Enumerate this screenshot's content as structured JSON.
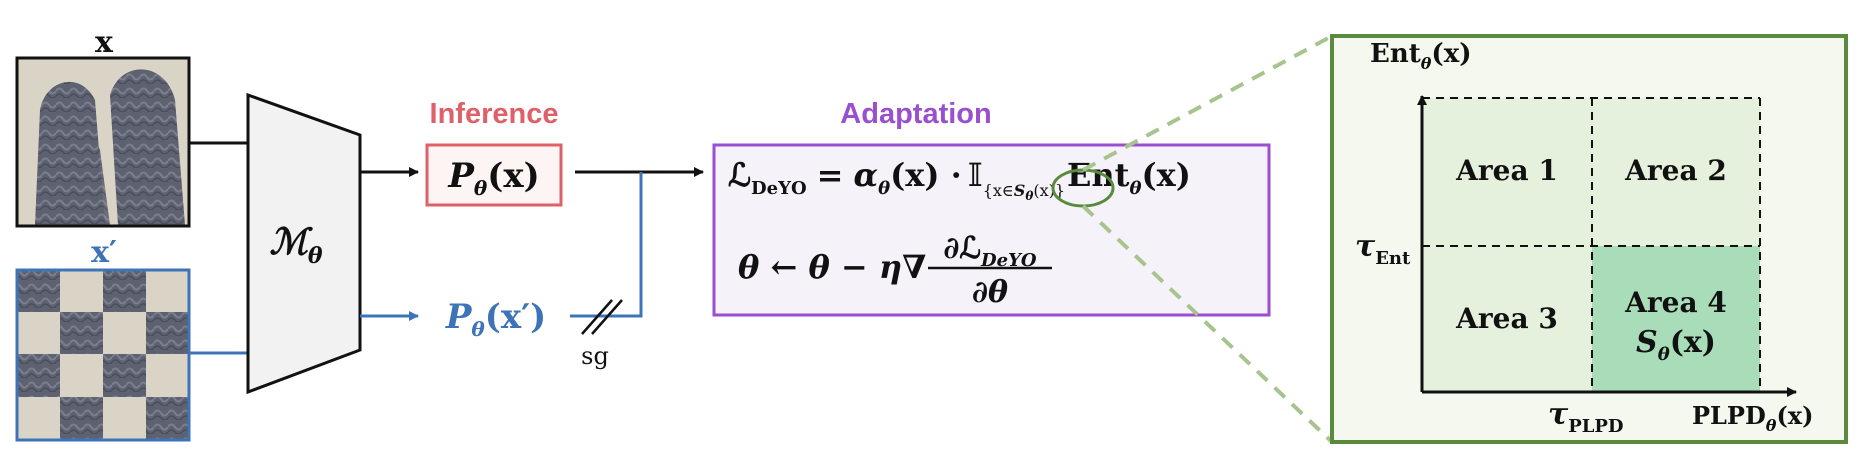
{
  "colors": {
    "black": "#111111",
    "blue": "#3d74b8",
    "inference_red": "#e0606a",
    "adaptation_purple": "#9a4fd0",
    "green_border": "#5a8a3e",
    "area_light": "#e5f1dc",
    "area_dark": "#a9dcb8",
    "panel_bg": "#f4f8ef",
    "box_bg_purple": "#f6f2fa",
    "box_bg_red": "#fdf4f4"
  },
  "input": {
    "x_label": "x",
    "x_prime_label": "x′"
  },
  "model": {
    "label_main": "ℳ",
    "label_sub": "θ"
  },
  "inference": {
    "title": "Inference",
    "output_main": "P",
    "output_sub": "θ",
    "output_arg": "(x)"
  },
  "augmented_output": {
    "main": "P",
    "sub": "θ",
    "arg": "(x′)"
  },
  "stop_gradient": "sg",
  "adaptation": {
    "title": "Adaptation",
    "loss_symbol": "ℒ",
    "loss_sub": "DeYO",
    "eq1_equals": "=",
    "alpha": "α",
    "alpha_sub": "θ",
    "alpha_arg": "(x) ·",
    "indicator": "𝕀",
    "indicator_sub_pre": "{x∈",
    "indicator_sub_s": "S",
    "indicator_sub_theta": "θ",
    "indicator_sub_post": "(x)}",
    "ent": "Ent",
    "ent_sub": "θ",
    "ent_arg": "(x)",
    "eq2_lhs": "θ ← θ − η∇",
    "eq2_num": "∂ℒ",
    "eq2_num_sub": "DeYO",
    "eq2_den": "∂θ"
  },
  "zoom_panel": {
    "y_axis_label": "Ent",
    "y_axis_sub": "θ",
    "y_axis_arg": "(x)",
    "x_axis_label": "PLPD",
    "x_axis_sub": "θ",
    "x_axis_arg": "(x)",
    "tau_ent": "τ",
    "tau_ent_sub": "Ent",
    "tau_plpd": "τ",
    "tau_plpd_sub": "PLPD",
    "areas": [
      {
        "label": "Area 1"
      },
      {
        "label": "Area 2"
      },
      {
        "label": "Area 3"
      },
      {
        "label": "Area 4",
        "extra": "S",
        "extra_sub": "θ",
        "extra_arg": "(x)"
      }
    ]
  }
}
